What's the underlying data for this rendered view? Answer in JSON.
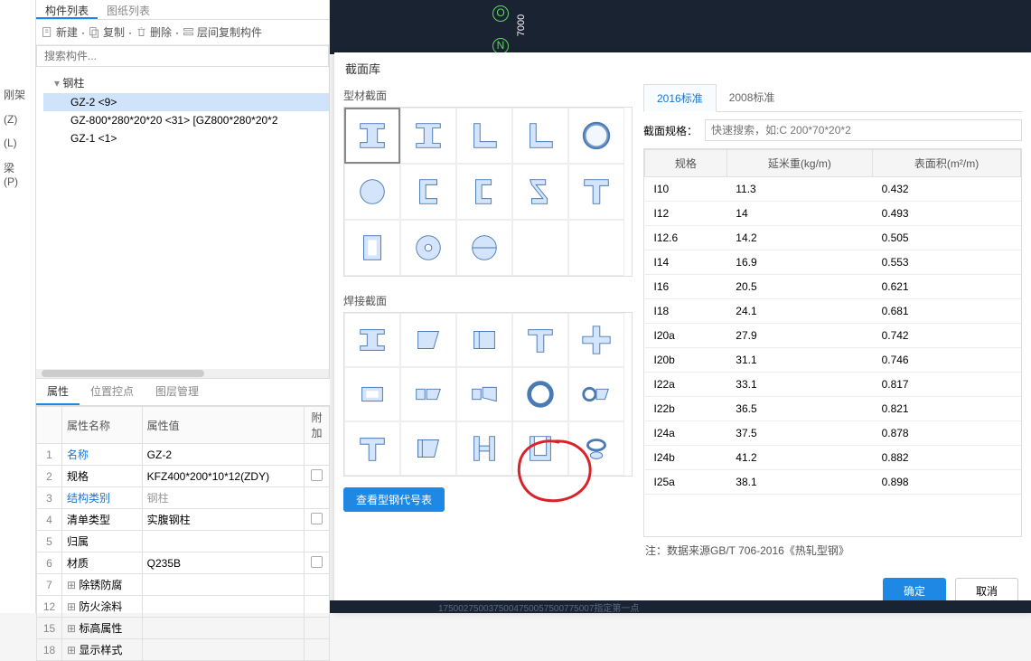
{
  "left_nav": {
    "items": [
      "刚架",
      "(Z)",
      "(L)",
      "梁 (P)"
    ]
  },
  "list_tabs": {
    "t1": "构件列表",
    "t2": "图纸列表"
  },
  "toolbar": {
    "new": "新建",
    "copy": "复制",
    "delete": "删除",
    "layer_copy": "层间复制构件"
  },
  "search": {
    "placeholder": "搜索构件..."
  },
  "tree": {
    "root": "钢柱",
    "items": [
      {
        "label": "GZ-2  <9>",
        "sel": true
      },
      {
        "label": "GZ-800*280*20*20  <31>  [GZ800*280*20*2"
      },
      {
        "label": "GZ-1  <1>"
      }
    ]
  },
  "props_tabs": {
    "t1": "属性",
    "t2": "位置控点",
    "t3": "图层管理"
  },
  "props": {
    "headers": {
      "name": "属性名称",
      "value": "属性值",
      "extra": "附加"
    },
    "rows": [
      {
        "idx": "1",
        "name": "名称",
        "value": "GZ-2",
        "link": true
      },
      {
        "idx": "2",
        "name": "规格",
        "value": "KFZ400*200*10*12(ZDY)",
        "chk": true
      },
      {
        "idx": "3",
        "name": "结构类别",
        "value": "钢柱",
        "link": true,
        "gray": true
      },
      {
        "idx": "4",
        "name": "清单类型",
        "value": "实腹钢柱",
        "chk": true
      },
      {
        "idx": "5",
        "name": "归属",
        "value": ""
      },
      {
        "idx": "6",
        "name": "材质",
        "value": "Q235B",
        "chk": true
      },
      {
        "idx": "7",
        "name": "除锈防腐",
        "value": "",
        "expand": true
      },
      {
        "idx": "12",
        "name": "防火涂料",
        "value": "",
        "expand": true
      },
      {
        "idx": "15",
        "name": "标高属性",
        "value": "",
        "expand": true
      },
      {
        "idx": "18",
        "name": "显示样式",
        "value": "",
        "expand": true
      }
    ]
  },
  "canvas": {
    "o": "O",
    "n": "N",
    "num": "7000"
  },
  "modal": {
    "title": "截面库",
    "profile_label": "型材截面",
    "weld_label": "焊接截面",
    "view_btn": "查看型钢代号表",
    "std_tabs": {
      "t1": "2016标准",
      "t2": "2008标准"
    },
    "spec_label": "截面规格：",
    "spec_placeholder": "快速搜索，如:C 200*70*20*2",
    "table_headers": {
      "c1": "规格",
      "c2": "延米重(kg/m)",
      "c3": "表面积(m²/m)"
    },
    "table_rows": [
      {
        "spec": "I10",
        "w": "11.3",
        "a": "0.432"
      },
      {
        "spec": "I12",
        "w": "14",
        "a": "0.493"
      },
      {
        "spec": "I12.6",
        "w": "14.2",
        "a": "0.505"
      },
      {
        "spec": "I14",
        "w": "16.9",
        "a": "0.553"
      },
      {
        "spec": "I16",
        "w": "20.5",
        "a": "0.621"
      },
      {
        "spec": "I18",
        "w": "24.1",
        "a": "0.681"
      },
      {
        "spec": "I20a",
        "w": "27.9",
        "a": "0.742"
      },
      {
        "spec": "I20b",
        "w": "31.1",
        "a": "0.746"
      },
      {
        "spec": "I22a",
        "w": "33.1",
        "a": "0.817"
      },
      {
        "spec": "I22b",
        "w": "36.5",
        "a": "0.821"
      },
      {
        "spec": "I24a",
        "w": "37.5",
        "a": "0.878"
      },
      {
        "spec": "I24b",
        "w": "41.2",
        "a": "0.882"
      },
      {
        "spec": "I25a",
        "w": "38.1",
        "a": "0.898"
      }
    ],
    "footnote": "注：数据来源GB/T 706-2016《热轧型钢》",
    "ok": "确定",
    "cancel": "取消"
  },
  "bottom": "1750027500375004750057500775007指定第一点",
  "colors": {
    "accent": "#1e88e5",
    "shape_fill": "#d3e4fb",
    "shape_stroke": "#4a7ab5",
    "annot": "#d8232a"
  }
}
